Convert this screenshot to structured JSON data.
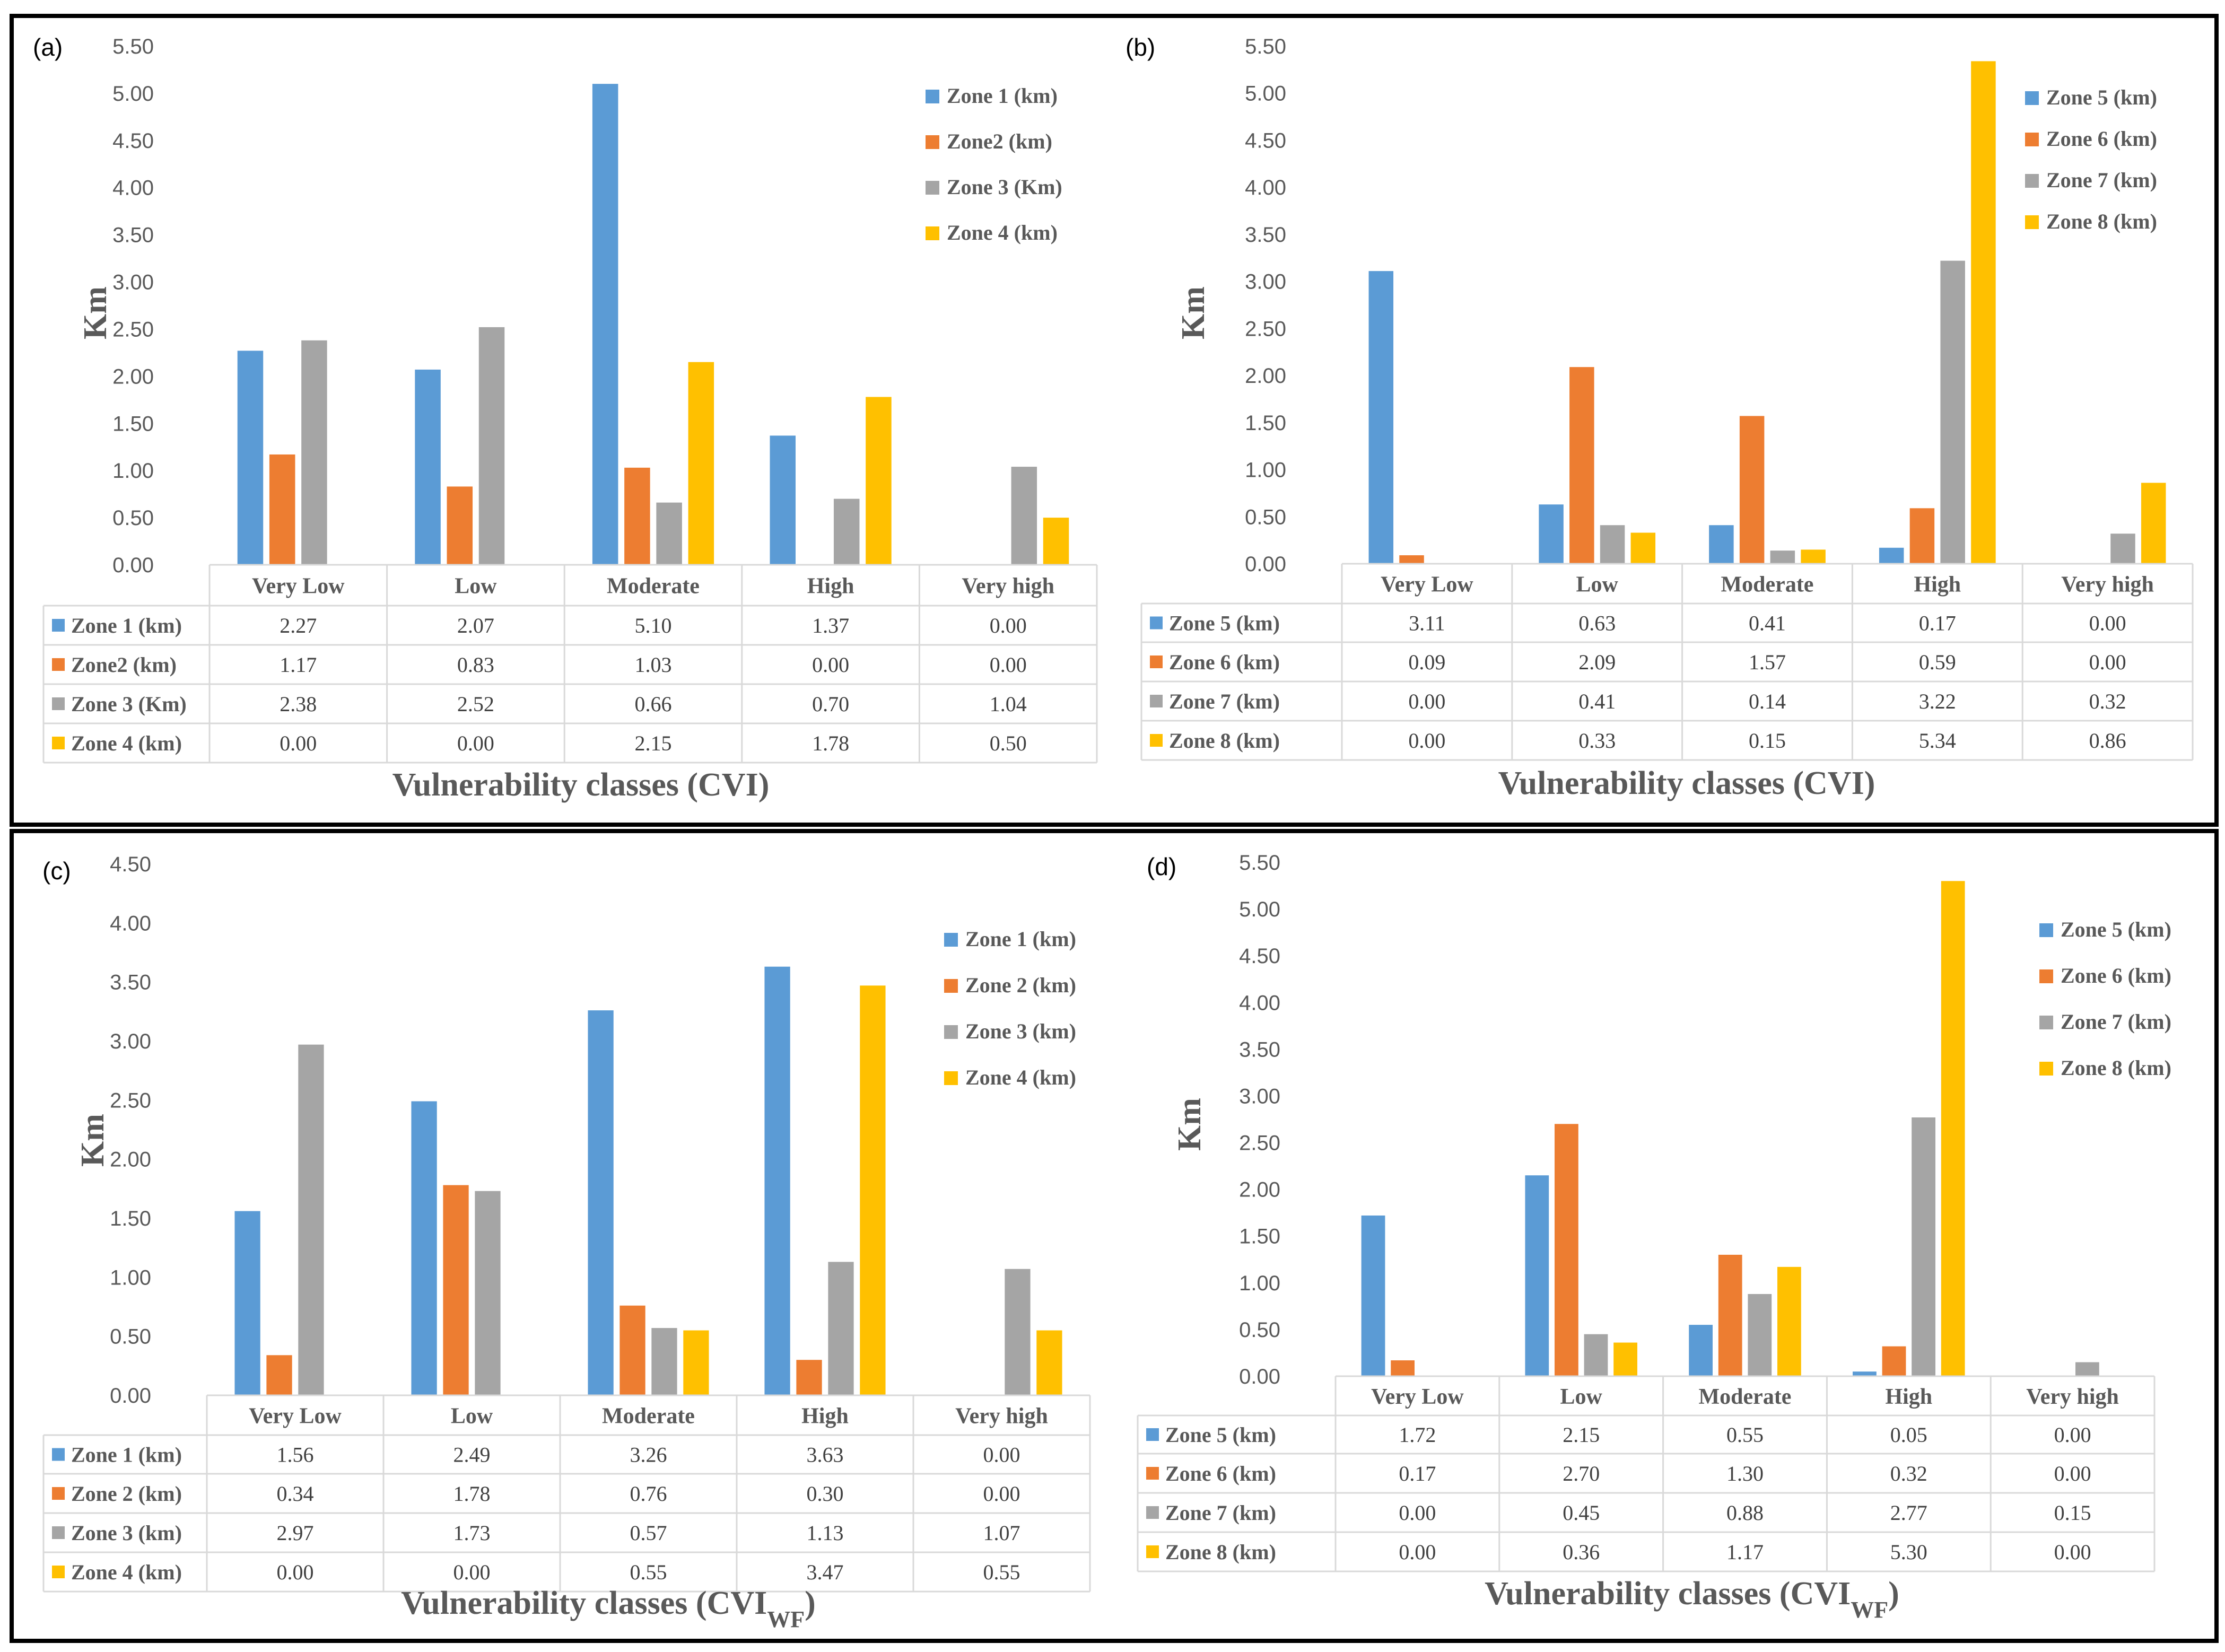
{
  "chart_data": [
    {
      "type": "bar",
      "panel_label": "(a)",
      "categories": [
        "Very Low",
        "Low",
        "Moderate",
        "High",
        "Very high"
      ],
      "series": [
        {
          "name": "Zone 1 (km)",
          "color": "#5b9bd5",
          "values": [
            2.27,
            2.07,
            5.1,
            1.37,
            0.0
          ]
        },
        {
          "name": "Zone2 (km)",
          "color": "#ed7d31",
          "values": [
            1.17,
            0.83,
            1.03,
            0.0,
            0.0
          ]
        },
        {
          "name": "Zone 3 (Km)",
          "color": "#a5a5a5",
          "values": [
            2.38,
            2.52,
            0.66,
            0.7,
            1.04
          ]
        },
        {
          "name": "Zone 4 (km)",
          "color": "#ffc000",
          "values": [
            0.0,
            0.0,
            2.15,
            1.78,
            0.5
          ]
        }
      ],
      "ylabel": "Km",
      "xlabel": "Vulnerability classes (CVI)",
      "xlabel_sub": "",
      "ylim": [
        0,
        5.5
      ],
      "yticks": [
        "0.00",
        "0.50",
        "1.00",
        "1.50",
        "2.00",
        "2.50",
        "3.00",
        "3.50",
        "4.00",
        "4.50",
        "5.00",
        "5.50"
      ],
      "legend": "top-right",
      "grid": false
    },
    {
      "type": "bar",
      "panel_label": "(b)",
      "categories": [
        "Very Low",
        "Low",
        "Moderate",
        "High",
        "Very high"
      ],
      "series": [
        {
          "name": "Zone 5 (km)",
          "color": "#5b9bd5",
          "values": [
            3.11,
            0.63,
            0.41,
            0.17,
            0.0
          ]
        },
        {
          "name": "Zone 6 (km)",
          "color": "#ed7d31",
          "values": [
            0.09,
            2.09,
            1.57,
            0.59,
            0.0
          ]
        },
        {
          "name": "Zone 7 (km)",
          "color": "#a5a5a5",
          "values": [
            0.0,
            0.41,
            0.14,
            3.22,
            0.32
          ]
        },
        {
          "name": "Zone 8 (km)",
          "color": "#ffc000",
          "values": [
            0.0,
            0.33,
            0.15,
            5.34,
            0.86
          ]
        }
      ],
      "ylabel": "Km",
      "xlabel": "Vulnerability classes (CVI)",
      "xlabel_sub": "",
      "ylim": [
        0,
        5.5
      ],
      "yticks": [
        "0.00",
        "0.50",
        "1.00",
        "1.50",
        "2.00",
        "2.50",
        "3.00",
        "3.50",
        "4.00",
        "4.50",
        "5.00",
        "5.50"
      ],
      "legend": "top-right",
      "grid": false
    },
    {
      "type": "bar",
      "panel_label": "(c)",
      "categories": [
        "Very Low",
        "Low",
        "Moderate",
        "High",
        "Very high"
      ],
      "series": [
        {
          "name": "Zone 1 (km)",
          "color": "#5b9bd5",
          "values": [
            1.56,
            2.49,
            3.26,
            3.63,
            0.0
          ]
        },
        {
          "name": "Zone 2 (km)",
          "color": "#ed7d31",
          "values": [
            0.34,
            1.78,
            0.76,
            0.3,
            0.0
          ]
        },
        {
          "name": "Zone 3 (km)",
          "color": "#a5a5a5",
          "values": [
            2.97,
            1.73,
            0.57,
            1.13,
            1.07
          ]
        },
        {
          "name": "Zone 4 (km)",
          "color": "#ffc000",
          "values": [
            0.0,
            0.0,
            0.55,
            3.47,
            0.55
          ]
        }
      ],
      "ylabel": "Km",
      "xlabel": "Vulnerability classes (CVI",
      "xlabel_sub": "WF",
      "xlabel_end": ")",
      "ylim": [
        0,
        4.5
      ],
      "yticks": [
        "0.00",
        "0.50",
        "1.00",
        "1.50",
        "2.00",
        "2.50",
        "3.00",
        "3.50",
        "4.00",
        "4.50"
      ],
      "legend": "top-right",
      "grid": false
    },
    {
      "type": "bar",
      "panel_label": "(d)",
      "categories": [
        "Very Low",
        "Low",
        "Moderate",
        "High",
        "Very high"
      ],
      "series": [
        {
          "name": "Zone 5 (km)",
          "color": "#5b9bd5",
          "values": [
            1.72,
            2.15,
            0.55,
            0.05,
            0.0
          ]
        },
        {
          "name": "Zone 6 (km)",
          "color": "#ed7d31",
          "values": [
            0.17,
            2.7,
            1.3,
            0.32,
            0.0
          ]
        },
        {
          "name": "Zone 7 (km)",
          "color": "#a5a5a5",
          "values": [
            0.0,
            0.45,
            0.88,
            2.77,
            0.15
          ]
        },
        {
          "name": "Zone 8 (km)",
          "color": "#ffc000",
          "values": [
            0.0,
            0.36,
            1.17,
            5.3,
            0.0
          ]
        }
      ],
      "ylabel": "Km",
      "xlabel": "Vulnerability classes (CVI",
      "xlabel_sub": "WF",
      "xlabel_end": ")",
      "ylim": [
        0,
        5.5
      ],
      "yticks": [
        "0.00",
        "0.50",
        "1.00",
        "1.50",
        "2.00",
        "2.50",
        "3.00",
        "3.50",
        "4.00",
        "4.50",
        "5.00",
        "5.50"
      ],
      "legend": "top-right",
      "grid": false
    }
  ]
}
